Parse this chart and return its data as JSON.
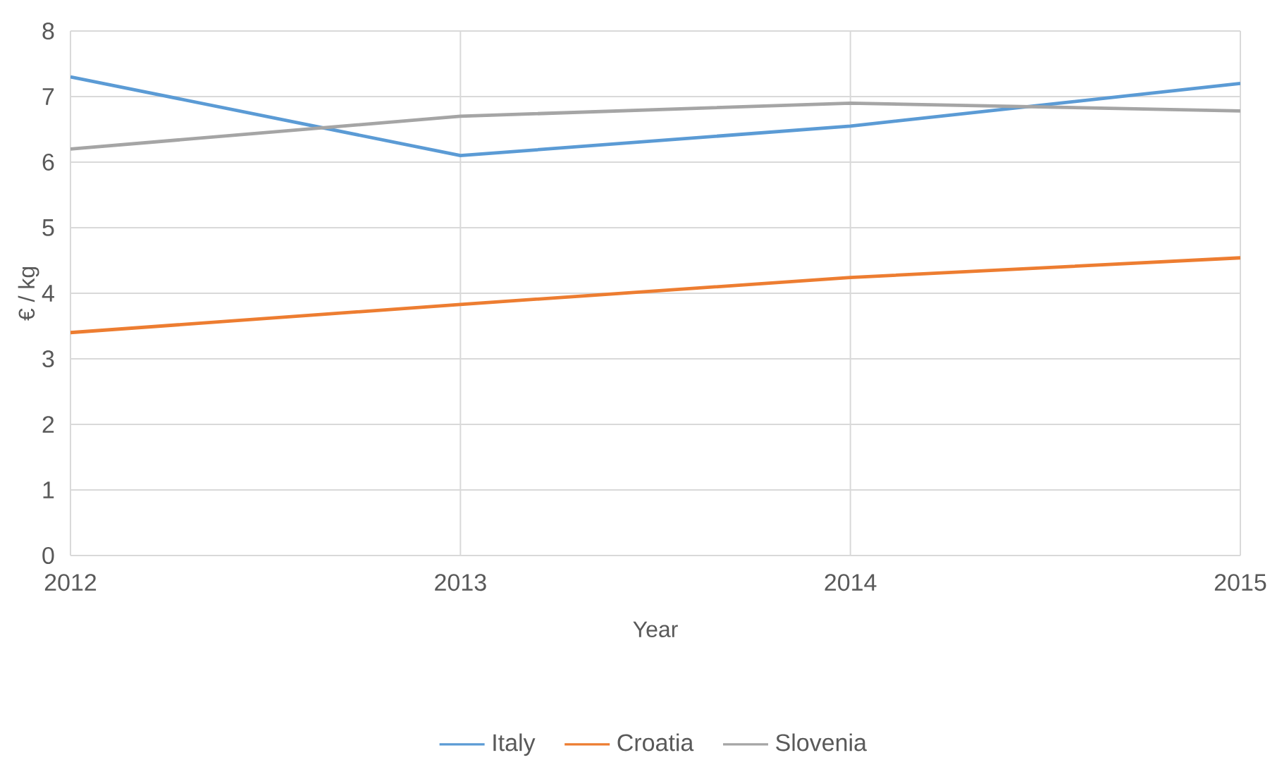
{
  "chart_data": {
    "type": "line",
    "xlabel": "Year",
    "ylabel": "€ / kg",
    "x": [
      2012,
      2013,
      2014,
      2015
    ],
    "series": [
      {
        "name": "Italy",
        "color": "#5b9bd5",
        "values": [
          7.3,
          6.1,
          6.55,
          7.2
        ]
      },
      {
        "name": "Croatia",
        "color": "#ed7d31",
        "values": [
          3.4,
          3.83,
          4.24,
          4.54
        ]
      },
      {
        "name": "Slovenia",
        "color": "#a5a5a5",
        "values": [
          6.2,
          6.7,
          6.9,
          6.78
        ]
      }
    ],
    "xlim": [
      2012,
      2015
    ],
    "xticks": [
      2012,
      2013,
      2014,
      2015
    ],
    "ylim": [
      0,
      8
    ],
    "yticks": [
      0,
      1,
      2,
      3,
      4,
      5,
      6,
      7,
      8
    ],
    "grid": true,
    "legend": "bottom",
    "marker": "none",
    "line_style": "solid"
  }
}
